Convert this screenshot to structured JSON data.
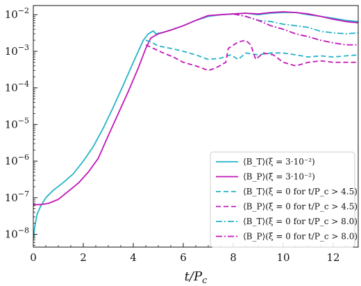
{
  "chart_data": {
    "type": "line",
    "xlabel": "t/P_c",
    "ylabel": "",
    "xlim": [
      0,
      13
    ],
    "ylim_log10": [
      -8.35,
      -1.75
    ],
    "yscale": "log",
    "x_ticks": [
      0,
      2,
      4,
      6,
      8,
      10,
      12
    ],
    "y_tick_exponents": [
      -8,
      -7,
      -6,
      -5,
      -4,
      -3,
      -2
    ],
    "grid": false,
    "legend_position": "lower-right",
    "colors": {
      "cyan": "#24b3c7",
      "magenta": "#c215b8"
    },
    "series": [
      {
        "name": "⟨B_T⟩(ξ = 3·10⁻²)",
        "color": "#24b3c7",
        "style": "solid",
        "points": [
          [
            0.0,
            7e-09
          ],
          [
            0.05,
            1.5e-08
          ],
          [
            0.15,
            3.5e-08
          ],
          [
            0.3,
            6e-08
          ],
          [
            0.5,
            1e-07
          ],
          [
            0.8,
            1.6e-07
          ],
          [
            1.2,
            2.6e-07
          ],
          [
            1.6,
            4.5e-07
          ],
          [
            2.0,
            1e-06
          ],
          [
            2.4,
            2.5e-06
          ],
          [
            2.8,
            8e-06
          ],
          [
            3.2,
            3e-05
          ],
          [
            3.6,
            0.00012
          ],
          [
            4.0,
            0.0005
          ],
          [
            4.4,
            0.002
          ],
          [
            4.6,
            0.003
          ],
          [
            4.8,
            0.0036
          ],
          [
            4.9,
            0.003
          ],
          [
            5.2,
            0.0033
          ],
          [
            5.6,
            0.004
          ],
          [
            6.0,
            0.005
          ],
          [
            6.5,
            0.007
          ],
          [
            7.0,
            0.009
          ],
          [
            7.5,
            0.01
          ],
          [
            8.0,
            0.0105
          ],
          [
            8.5,
            0.011
          ],
          [
            9.0,
            0.01
          ],
          [
            9.5,
            0.011
          ],
          [
            10.0,
            0.0115
          ],
          [
            10.5,
            0.0115
          ],
          [
            11.0,
            0.01
          ],
          [
            11.5,
            0.009
          ],
          [
            12.0,
            0.008
          ],
          [
            12.5,
            0.007
          ],
          [
            13.0,
            0.0065
          ]
        ]
      },
      {
        "name": "⟨B_P⟩(ξ = 3·10⁻²)",
        "color": "#c215b8",
        "style": "solid",
        "points": [
          [
            0.0,
            6.5e-08
          ],
          [
            0.3,
            6.5e-08
          ],
          [
            0.6,
            7e-08
          ],
          [
            1.0,
            9e-08
          ],
          [
            1.4,
            1.5e-07
          ],
          [
            1.8,
            2.5e-07
          ],
          [
            2.2,
            5e-07
          ],
          [
            2.6,
            1.2e-06
          ],
          [
            3.0,
            5e-06
          ],
          [
            3.4,
            2e-05
          ],
          [
            3.8,
            8e-05
          ],
          [
            4.2,
            0.00035
          ],
          [
            4.5,
            0.0012
          ],
          [
            4.7,
            0.0023
          ],
          [
            5.0,
            0.003
          ],
          [
            5.5,
            0.0038
          ],
          [
            6.0,
            0.005
          ],
          [
            6.5,
            0.007
          ],
          [
            7.0,
            0.0095
          ],
          [
            7.5,
            0.01
          ],
          [
            8.0,
            0.0105
          ],
          [
            8.5,
            0.011
          ],
          [
            9.0,
            0.0105
          ],
          [
            9.5,
            0.0115
          ],
          [
            10.0,
            0.012
          ],
          [
            10.5,
            0.0115
          ],
          [
            11.0,
            0.0105
          ],
          [
            11.5,
            0.009
          ],
          [
            12.0,
            0.0075
          ],
          [
            12.5,
            0.0065
          ],
          [
            13.0,
            0.006
          ]
        ]
      },
      {
        "name": "⟨B_T⟩(ξ = 0 for t/P_c > 4.5)",
        "color": "#24b3c7",
        "style": "dashed",
        "points": [
          [
            4.5,
            0.002
          ],
          [
            4.7,
            0.0018
          ],
          [
            5.0,
            0.0014
          ],
          [
            5.5,
            0.0012
          ],
          [
            6.0,
            0.001
          ],
          [
            6.5,
            0.0008
          ],
          [
            7.0,
            0.0006
          ],
          [
            7.5,
            0.00065
          ],
          [
            7.9,
            0.0008
          ],
          [
            8.2,
            0.0006
          ],
          [
            8.5,
            0.0009
          ],
          [
            9.0,
            0.0008
          ],
          [
            9.5,
            0.0009
          ],
          [
            10.0,
            0.0009
          ],
          [
            10.5,
            0.0008
          ],
          [
            11.0,
            0.0007
          ],
          [
            11.5,
            0.00075
          ],
          [
            12.0,
            0.0007
          ],
          [
            12.5,
            0.00075
          ],
          [
            13.0,
            0.0008
          ]
        ]
      },
      {
        "name": "⟨B_P⟩(ξ = 0 for t/P_c > 4.5)",
        "color": "#c215b8",
        "style": "dashed",
        "points": [
          [
            4.5,
            0.0015
          ],
          [
            4.8,
            0.0012
          ],
          [
            5.2,
            0.0009
          ],
          [
            5.6,
            0.0007
          ],
          [
            6.0,
            0.0005
          ],
          [
            6.5,
            0.0004
          ],
          [
            7.0,
            0.0003
          ],
          [
            7.3,
            0.00035
          ],
          [
            7.7,
            0.0005
          ],
          [
            7.8,
            0.0012
          ],
          [
            8.2,
            0.0018
          ],
          [
            8.5,
            0.002
          ],
          [
            8.7,
            0.0015
          ],
          [
            8.9,
            0.0006
          ],
          [
            9.2,
            0.0009
          ],
          [
            9.6,
            0.0008
          ],
          [
            10.0,
            0.0005
          ],
          [
            10.5,
            0.0004
          ],
          [
            11.0,
            0.0005
          ],
          [
            11.5,
            0.00055
          ],
          [
            12.0,
            0.0005
          ],
          [
            12.5,
            0.0005
          ],
          [
            13.0,
            0.0005
          ]
        ]
      },
      {
        "name": "⟨B_T⟩(ξ = 0 for t/P_c > 8.0)",
        "color": "#24b3c7",
        "style": "dashdot",
        "points": [
          [
            8.0,
            0.0105
          ],
          [
            8.5,
            0.009
          ],
          [
            9.0,
            0.007
          ],
          [
            9.5,
            0.0065
          ],
          [
            10.0,
            0.0055
          ],
          [
            10.5,
            0.005
          ],
          [
            11.0,
            0.0045
          ],
          [
            11.5,
            0.0035
          ],
          [
            12.0,
            0.0032
          ],
          [
            12.5,
            0.003
          ],
          [
            13.0,
            0.0032
          ]
        ]
      },
      {
        "name": "⟨B_P⟩(ξ = 0 for t/P_c > 8.0)",
        "color": "#c215b8",
        "style": "dashdot",
        "points": [
          [
            8.0,
            0.0105
          ],
          [
            8.5,
            0.009
          ],
          [
            9.0,
            0.007
          ],
          [
            9.5,
            0.005
          ],
          [
            10.0,
            0.004
          ],
          [
            10.5,
            0.003
          ],
          [
            11.0,
            0.0025
          ],
          [
            11.5,
            0.002
          ],
          [
            12.0,
            0.0017
          ],
          [
            12.5,
            0.0015
          ],
          [
            13.0,
            0.0015
          ]
        ]
      }
    ]
  }
}
